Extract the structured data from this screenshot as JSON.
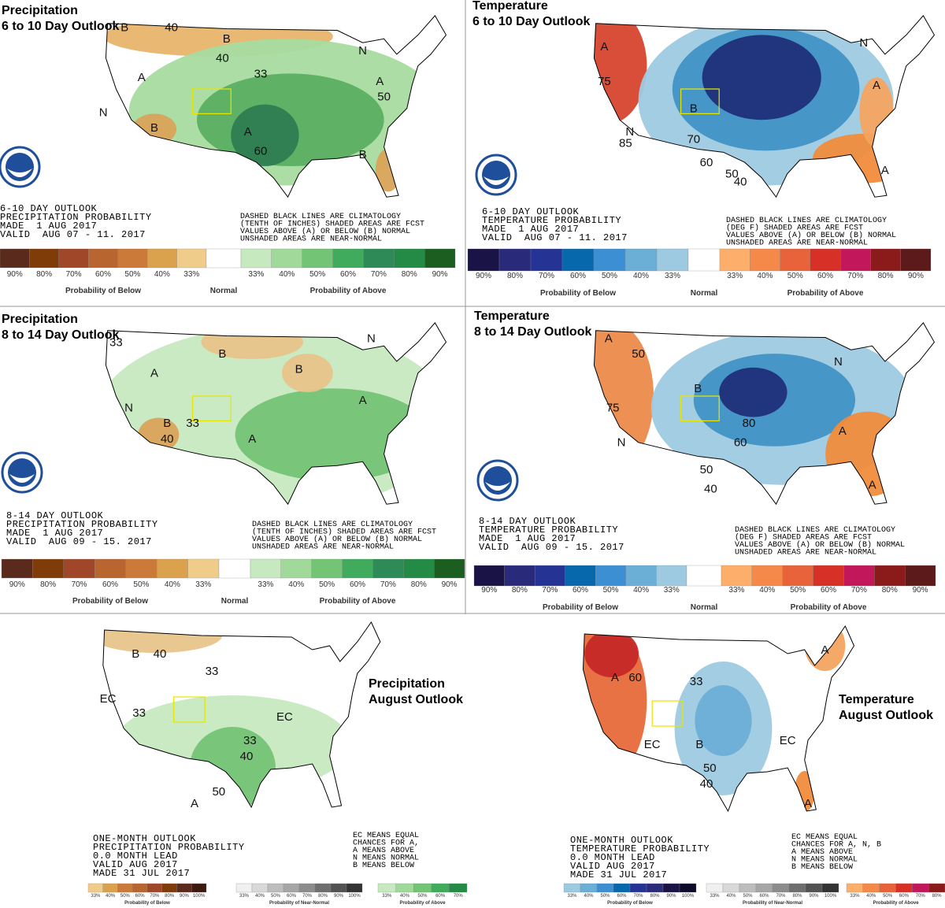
{
  "panels": [
    {
      "title": [
        "Precipitation",
        "6 to 10 Day Outlook"
      ],
      "info": [
        "6-10 DAY OUTLOOK",
        "PRECIPITATION PROBABILITY",
        "MADE  1 AUG 2017",
        "VALID  AUG 07 - 11. 2017"
      ],
      "note": [
        "DASHED BLACK LINES ARE CLIMATOLOGY",
        "(TENTH OF INCHES) SHADED AREAS ARE FCST",
        "VALUES ABOVE (A) OR BELOW (B) NORMAL",
        "UNSHADED AREAS ARE NEAR-NORMAL"
      ],
      "labels": [
        "B",
        "40",
        "B",
        "40",
        "33",
        "A",
        "A",
        "N",
        "B",
        "A",
        "60",
        "B",
        "N",
        "50"
      ],
      "legend": [
        {
          "caption": "Probability of Below",
          "ticks": [
            "90%",
            "80%",
            "70%",
            "60%",
            "50%",
            "40%",
            "33%"
          ],
          "colors": [
            "#5a2a1c",
            "#7f3b08",
            "#a0472a",
            "#b8652f",
            "#cc7a3a",
            "#dba24e",
            "#f0cc8a"
          ]
        },
        {
          "caption": "Normal"
        },
        {
          "caption": "Probability of Above",
          "ticks": [
            "33%",
            "40%",
            "50%",
            "60%",
            "70%",
            "80%",
            "90%"
          ],
          "colors": [
            "#c7e9c0",
            "#a1d99b",
            "#74c476",
            "#41ab5d",
            "#2e8b57",
            "#238b45",
            "#1b5e20"
          ]
        }
      ]
    },
    {
      "title": [
        "Temperature",
        "6 to 10 Day Outlook"
      ],
      "info": [
        "6-10 DAY OUTLOOK",
        "TEMPERATURE PROBABILITY",
        "MADE  1 AUG 2017",
        "VALID  AUG 07 - 11. 2017"
      ],
      "note": [
        "DASHED BLACK LINES ARE CLIMATOLOGY",
        "(DEG F) SHADED AREAS ARE FCST",
        "VALUES ABOVE (A) OR BELOW (B) NORMAL",
        "UNSHADED AREAS ARE NEAR-NORMAL"
      ],
      "labels": [
        "A",
        "75",
        "B",
        "N",
        "85",
        "70",
        "60",
        "50",
        "40",
        "A",
        "N",
        "A"
      ],
      "legend": [
        {
          "caption": "Probability of Below",
          "ticks": [
            "90%",
            "80%",
            "70%",
            "60%",
            "50%",
            "40%",
            "33%"
          ],
          "colors": [
            "#1a1446",
            "#2a2a7a",
            "#253494",
            "#0868ac",
            "#3d8fd4",
            "#6baed6",
            "#9ecae1"
          ]
        },
        {
          "caption": "Normal"
        },
        {
          "caption": "Probability of Above",
          "ticks": [
            "33%",
            "40%",
            "50%",
            "60%",
            "70%",
            "80%",
            "90%"
          ],
          "colors": [
            "#fdae6b",
            "#f4894a",
            "#e8623a",
            "#d73027",
            "#c2185b",
            "#8b1a1a",
            "#5c1a1a"
          ]
        }
      ]
    },
    {
      "title": [
        "Precipitation",
        "8 to 14 Day Outlook"
      ],
      "info": [
        "8-14 DAY OUTLOOK",
        "PRECIPITATION PROBABILITY",
        "MADE  1 AUG 2017",
        "VALID  AUG 09 - 15. 2017"
      ],
      "note": [
        "DASHED BLACK LINES ARE CLIMATOLOGY",
        "(TENTH OF INCHES) SHADED AREAS ARE FCST",
        "VALUES ABOVE (A) OR BELOW (B) NORMAL",
        "UNSHADED AREAS ARE NEAR-NORMAL"
      ],
      "labels": [
        "33",
        "A",
        "B",
        "B",
        "N",
        "B",
        "40",
        "33",
        "A",
        "A",
        "N"
      ],
      "legend": [
        {
          "caption": "Probability of Below",
          "ticks": [
            "90%",
            "80%",
            "70%",
            "60%",
            "50%",
            "40%",
            "33%"
          ],
          "colors": [
            "#5a2a1c",
            "#7f3b08",
            "#a0472a",
            "#b8652f",
            "#cc7a3a",
            "#dba24e",
            "#f0cc8a"
          ]
        },
        {
          "caption": "Normal"
        },
        {
          "caption": "Probability of Above",
          "ticks": [
            "33%",
            "40%",
            "50%",
            "60%",
            "70%",
            "80%",
            "90%"
          ],
          "colors": [
            "#c7e9c0",
            "#a1d99b",
            "#74c476",
            "#41ab5d",
            "#2e8b57",
            "#238b45",
            "#1b5e20"
          ]
        }
      ]
    },
    {
      "title": [
        "Temperature",
        "8 to 14 Day Outlook"
      ],
      "info": [
        "8-14 DAY OUTLOOK",
        "TEMPERATURE PROBABILITY",
        "MADE  1 AUG 2017",
        "VALID  AUG 09 - 15. 2017"
      ],
      "note": [
        "DASHED BLACK LINES ARE CLIMATOLOGY",
        "(DEG F) SHADED AREAS ARE FCST",
        "VALUES ABOVE (A) OR BELOW (B) NORMAL",
        "UNSHADED AREAS ARE NEAR-NORMAL"
      ],
      "labels": [
        "A",
        "50",
        "75",
        "B",
        "N",
        "80",
        "60",
        "50",
        "40",
        "A",
        "N",
        "A"
      ],
      "legend": [
        {
          "caption": "Probability of Below",
          "ticks": [
            "90%",
            "80%",
            "70%",
            "60%",
            "50%",
            "40%",
            "33%"
          ],
          "colors": [
            "#1a1446",
            "#2a2a7a",
            "#253494",
            "#0868ac",
            "#3d8fd4",
            "#6baed6",
            "#9ecae1"
          ]
        },
        {
          "caption": "Normal"
        },
        {
          "caption": "Probability of Above",
          "ticks": [
            "33%",
            "40%",
            "50%",
            "60%",
            "70%",
            "80%",
            "90%"
          ],
          "colors": [
            "#fdae6b",
            "#f4894a",
            "#e8623a",
            "#d73027",
            "#c2185b",
            "#8b1a1a",
            "#5c1a1a"
          ]
        }
      ]
    },
    {
      "title": [
        "Precipitation",
        "August Outlook"
      ],
      "info": [
        "ONE-MONTH OUTLOOK",
        "PRECIPITATION PROBABILITY",
        "0.0 MONTH LEAD",
        "VALID AUG 2017",
        "MADE 31 JUL 2017"
      ],
      "note": [
        "EC MEANS EQUAL",
        "CHANCES FOR A,",
        "A MEANS ABOVE",
        "N MEANS NORMAL",
        "B MEANS BELOW"
      ],
      "labels": [
        "B",
        "40",
        "33",
        "EC",
        "33",
        "EC",
        "33",
        "40",
        "A",
        "50"
      ],
      "legend": [
        {
          "caption": "Probability of Below",
          "ticks": [
            "33%",
            "40%",
            "50%",
            "60%",
            "70%",
            "80%",
            "90%",
            "100%"
          ],
          "colors": [
            "#f0cc8a",
            "#dba24e",
            "#cc7a3a",
            "#b8652f",
            "#a0472a",
            "#7f3b08",
            "#5a2a1c",
            "#3d1a10"
          ]
        },
        {
          "caption": "Probability of Near-Normal",
          "ticks": [
            "33%",
            "40%",
            "50%",
            "60%",
            "70%",
            "80%",
            "90%",
            "100%"
          ],
          "colors": [
            "#f0f0f0",
            "#d9d9d9",
            "#bdbdbd",
            "#a6a6a6",
            "#8c8c8c",
            "#6e6e6e",
            "#525252",
            "#333333"
          ]
        },
        {
          "caption": "Probability of Above",
          "ticks": [
            "33%",
            "40%",
            "50%",
            "60%",
            "70%"
          ],
          "colors": [
            "#c7e9c0",
            "#a1d99b",
            "#74c476",
            "#41ab5d",
            "#238b45"
          ]
        }
      ]
    },
    {
      "title": [
        "Temperature",
        "August Outlook"
      ],
      "info": [
        "ONE-MONTH OUTLOOK",
        "TEMPERATURE PROBABILITY",
        "0.0 MONTH LEAD",
        "VALID AUG 2017",
        "MADE 31 JUL 2017"
      ],
      "note": [
        "EC MEANS EQUAL",
        "CHANCES FOR A, N, B",
        "A MEANS ABOVE",
        "N MEANS NORMAL",
        "B MEANS BELOW"
      ],
      "labels": [
        "A",
        "60",
        "33",
        "EC",
        "B",
        "50",
        "40",
        "EC",
        "A",
        "A"
      ],
      "legend": [
        {
          "caption": "Probability of Below",
          "ticks": [
            "33%",
            "40%",
            "50%",
            "60%",
            "70%",
            "80%",
            "90%",
            "100%"
          ],
          "colors": [
            "#9ecae1",
            "#6baed6",
            "#3d8fd4",
            "#0868ac",
            "#253494",
            "#2a2a7a",
            "#1a1446",
            "#0d0a2a"
          ]
        },
        {
          "caption": "Probability of Near-Normal",
          "ticks": [
            "33%",
            "40%",
            "50%",
            "60%",
            "70%",
            "80%",
            "90%",
            "100%"
          ],
          "colors": [
            "#f0f0f0",
            "#d9d9d9",
            "#bdbdbd",
            "#a6a6a6",
            "#8c8c8c",
            "#6e6e6e",
            "#525252",
            "#333333"
          ]
        },
        {
          "caption": "Probability of Above",
          "ticks": [
            "33%",
            "40%",
            "50%",
            "60%",
            "70%",
            "80%"
          ],
          "colors": [
            "#fdae6b",
            "#f4894a",
            "#e8623a",
            "#d73027",
            "#c2185b",
            "#8b1a1a"
          ]
        }
      ]
    }
  ]
}
